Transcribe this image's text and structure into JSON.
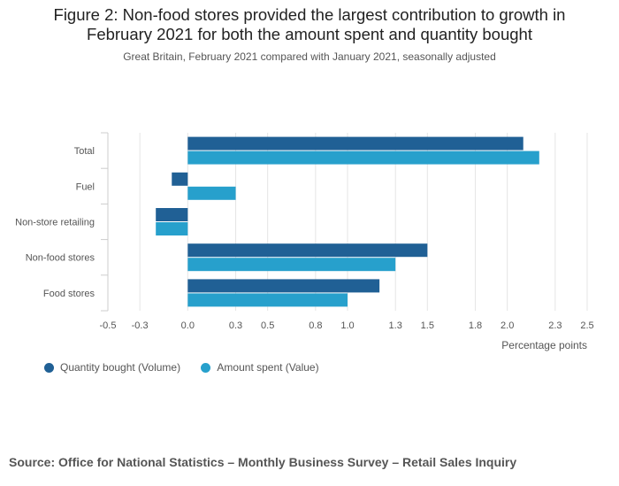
{
  "title_lines": [
    "Figure 2: Non-food stores provided the largest contribution to growth in",
    "February 2021 for both the amount spent and quantity bought"
  ],
  "subtitle": "Great Britain, February 2021 compared with January 2021, seasonally adjusted",
  "source": "Source: Office for National Statistics – Monthly Business Survey – Retail Sales Inquiry",
  "colors": {
    "volume": "#206095",
    "value": "#27a0cc",
    "grid": "#e5e5e5",
    "axis": "#cccccc",
    "text": "#555555"
  },
  "chart_data": {
    "type": "bar",
    "orientation": "horizontal",
    "categories": [
      "Total",
      "Fuel",
      "Non-store retailing",
      "Non-food stores",
      "Food stores"
    ],
    "series": [
      {
        "name": "Quantity bought (Volume)",
        "values": [
          2.1,
          -0.1,
          -0.2,
          1.5,
          1.2
        ]
      },
      {
        "name": "Amount spent (Value)",
        "values": [
          2.2,
          0.3,
          -0.2,
          1.3,
          1.0
        ]
      }
    ],
    "xlim": [
      -0.5,
      2.5
    ],
    "xticks": [
      "-0.5",
      "-0.3",
      "0.0",
      "0.3",
      "0.5",
      "0.8",
      "1.0",
      "1.3",
      "1.5",
      "1.8",
      "2.0",
      "2.3",
      "2.5"
    ],
    "xlabel": "Percentage points",
    "ylabel": "",
    "grid": true,
    "legend": "bottom-left"
  }
}
